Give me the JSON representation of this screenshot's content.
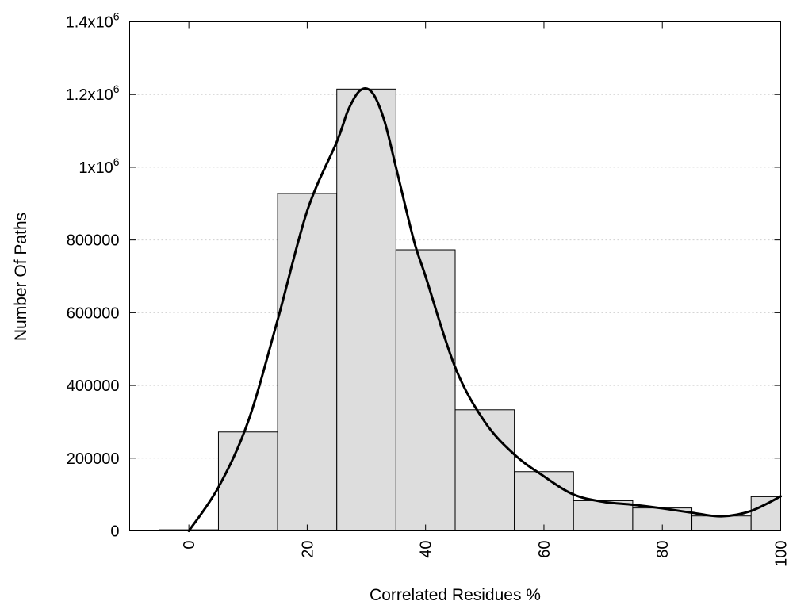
{
  "chart_data": {
    "type": "bar",
    "xlabel": "Correlated Residues %",
    "ylabel": "Number Of Paths",
    "xlim": [
      -10,
      100
    ],
    "ylim": [
      0,
      1400000
    ],
    "x_ticks": [
      {
        "value": 0,
        "label": "0"
      },
      {
        "value": 20,
        "label": "20"
      },
      {
        "value": 40,
        "label": "40"
      },
      {
        "value": 60,
        "label": "60"
      },
      {
        "value": 80,
        "label": "80"
      },
      {
        "value": 100,
        "label": "100"
      }
    ],
    "y_ticks": [
      {
        "value": 0,
        "label": "0"
      },
      {
        "value": 200000,
        "label": "200000"
      },
      {
        "value": 400000,
        "label": "400000"
      },
      {
        "value": 600000,
        "label": "600000"
      },
      {
        "value": 800000,
        "label": "800000"
      },
      {
        "value": 1000000,
        "label": "1x10",
        "sup": "6"
      },
      {
        "value": 1200000,
        "label": "1.2x10",
        "sup": "6"
      },
      {
        "value": 1400000,
        "label": "1.4x10",
        "sup": "6"
      }
    ],
    "bin_width": 10,
    "bins": [
      0,
      10,
      20,
      30,
      40,
      50,
      60,
      70,
      80,
      90,
      100
    ],
    "values": [
      3000,
      272000,
      928000,
      1215000,
      773000,
      333000,
      163000,
      83000,
      63000,
      41000,
      94000
    ],
    "grid": "horizontal dotted",
    "fit_curve": {
      "x": [
        0,
        5,
        10,
        15,
        20,
        25,
        27,
        29,
        31,
        33,
        35,
        38,
        40,
        45,
        50,
        55,
        60,
        65,
        70,
        75,
        80,
        85,
        90,
        95,
        100
      ],
      "y": [
        0,
        120000,
        300000,
        580000,
        880000,
        1070000,
        1160000,
        1212000,
        1205000,
        1130000,
        1000000,
        800000,
        700000,
        450000,
        300000,
        210000,
        150000,
        100000,
        80000,
        72000,
        62000,
        50000,
        40000,
        55000,
        95000
      ]
    },
    "colors": {
      "bar_fill": "#dddddd",
      "bar_stroke": "#000000",
      "curve": "#000000",
      "grid": "#cfcfcf"
    }
  }
}
